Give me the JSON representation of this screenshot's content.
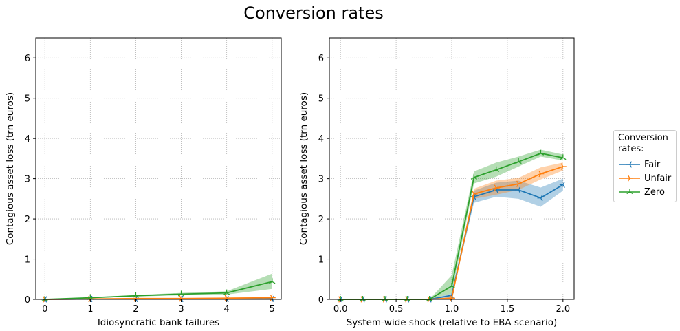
{
  "title": "Conversion rates",
  "legend": {
    "title": "Conversion\nrates:",
    "entries": [
      {
        "name": "Fair",
        "color": "#1f77b4",
        "marker": "tri-left"
      },
      {
        "name": "Unfair",
        "color": "#ff7f0e",
        "marker": "tri-right"
      },
      {
        "name": "Zero",
        "color": "#2ca02c",
        "marker": "tri-up"
      }
    ]
  },
  "chart_data": [
    {
      "type": "line",
      "xlabel": "Idiosyncratic bank failures",
      "ylabel": "Contagious asset loss (trn euros)",
      "xlim": [
        -0.2,
        5.2
      ],
      "ylim": [
        0,
        6.5
      ],
      "xticks": [
        0,
        1,
        2,
        3,
        4,
        5
      ],
      "xtick_labels": [
        "0",
        "1",
        "2",
        "3",
        "4",
        "5"
      ],
      "yticks": [
        0,
        1,
        2,
        3,
        4,
        5,
        6
      ],
      "ytick_labels": [
        "0",
        "1",
        "2",
        "3",
        "4",
        "5",
        "6"
      ],
      "grid": true,
      "x": [
        0,
        1,
        2,
        3,
        4,
        5
      ],
      "series": [
        {
          "name": "Fair",
          "values": [
            0,
            0.01,
            0.01,
            0.01,
            0.01,
            0.01
          ],
          "lower": [
            0,
            0.005,
            0.005,
            0.005,
            0.005,
            0.005
          ],
          "upper": [
            0,
            0.015,
            0.015,
            0.015,
            0.015,
            0.02
          ]
        },
        {
          "name": "Unfair",
          "values": [
            0,
            0.01,
            0.02,
            0.02,
            0.03,
            0.04
          ],
          "lower": [
            0,
            0.005,
            0.01,
            0.01,
            0.015,
            0.02
          ],
          "upper": [
            0,
            0.015,
            0.03,
            0.03,
            0.045,
            0.06
          ]
        },
        {
          "name": "Zero",
          "values": [
            0,
            0.04,
            0.09,
            0.13,
            0.16,
            0.44
          ],
          "lower": [
            0,
            0.03,
            0.07,
            0.1,
            0.12,
            0.26
          ],
          "upper": [
            0,
            0.05,
            0.11,
            0.16,
            0.2,
            0.64
          ]
        }
      ]
    },
    {
      "type": "line",
      "xlabel": "System-wide shock (relative to EBA scenario)",
      "ylabel": "Contagious asset loss (trn euros)",
      "xlim": [
        -0.1,
        2.1
      ],
      "ylim": [
        0,
        6.5
      ],
      "xticks": [
        0,
        0.5,
        1,
        1.5,
        2
      ],
      "xtick_labels": [
        "0.0",
        "0.5",
        "1.0",
        "1.5",
        "2.0"
      ],
      "yticks": [
        0,
        1,
        2,
        3,
        4,
        5,
        6
      ],
      "ytick_labels": [
        "0",
        "1",
        "2",
        "3",
        "4",
        "5",
        "6"
      ],
      "grid": true,
      "x": [
        0,
        0.2,
        0.4,
        0.6,
        0.8,
        1.0,
        1.2,
        1.4,
        1.6,
        1.8,
        2.0
      ],
      "series": [
        {
          "name": "Fair",
          "values": [
            0,
            0,
            0,
            0,
            0,
            0.1,
            2.55,
            2.72,
            2.72,
            2.52,
            2.85
          ],
          "lower": [
            0,
            0,
            0,
            0,
            0,
            0.05,
            2.4,
            2.55,
            2.5,
            2.3,
            2.7
          ],
          "upper": [
            0,
            0,
            0,
            0,
            0,
            0.15,
            2.7,
            2.9,
            2.95,
            2.78,
            3.0
          ]
        },
        {
          "name": "Unfair",
          "values": [
            0,
            0,
            0,
            0,
            0,
            0.03,
            2.62,
            2.77,
            2.87,
            3.12,
            3.3
          ],
          "lower": [
            0,
            0,
            0,
            0,
            0,
            0.01,
            2.5,
            2.6,
            2.72,
            2.98,
            3.2
          ],
          "upper": [
            0,
            0,
            0,
            0,
            0,
            0.06,
            2.75,
            2.95,
            3.02,
            3.28,
            3.4
          ]
        },
        {
          "name": "Zero",
          "values": [
            0,
            0,
            0,
            0,
            0,
            0.33,
            3.03,
            3.22,
            3.42,
            3.63,
            3.52
          ],
          "lower": [
            0,
            0,
            0,
            0,
            0,
            0.15,
            2.88,
            3.05,
            3.3,
            3.55,
            3.45
          ],
          "upper": [
            0,
            0,
            0,
            0,
            0,
            0.6,
            3.18,
            3.4,
            3.55,
            3.72,
            3.6
          ]
        }
      ]
    }
  ]
}
